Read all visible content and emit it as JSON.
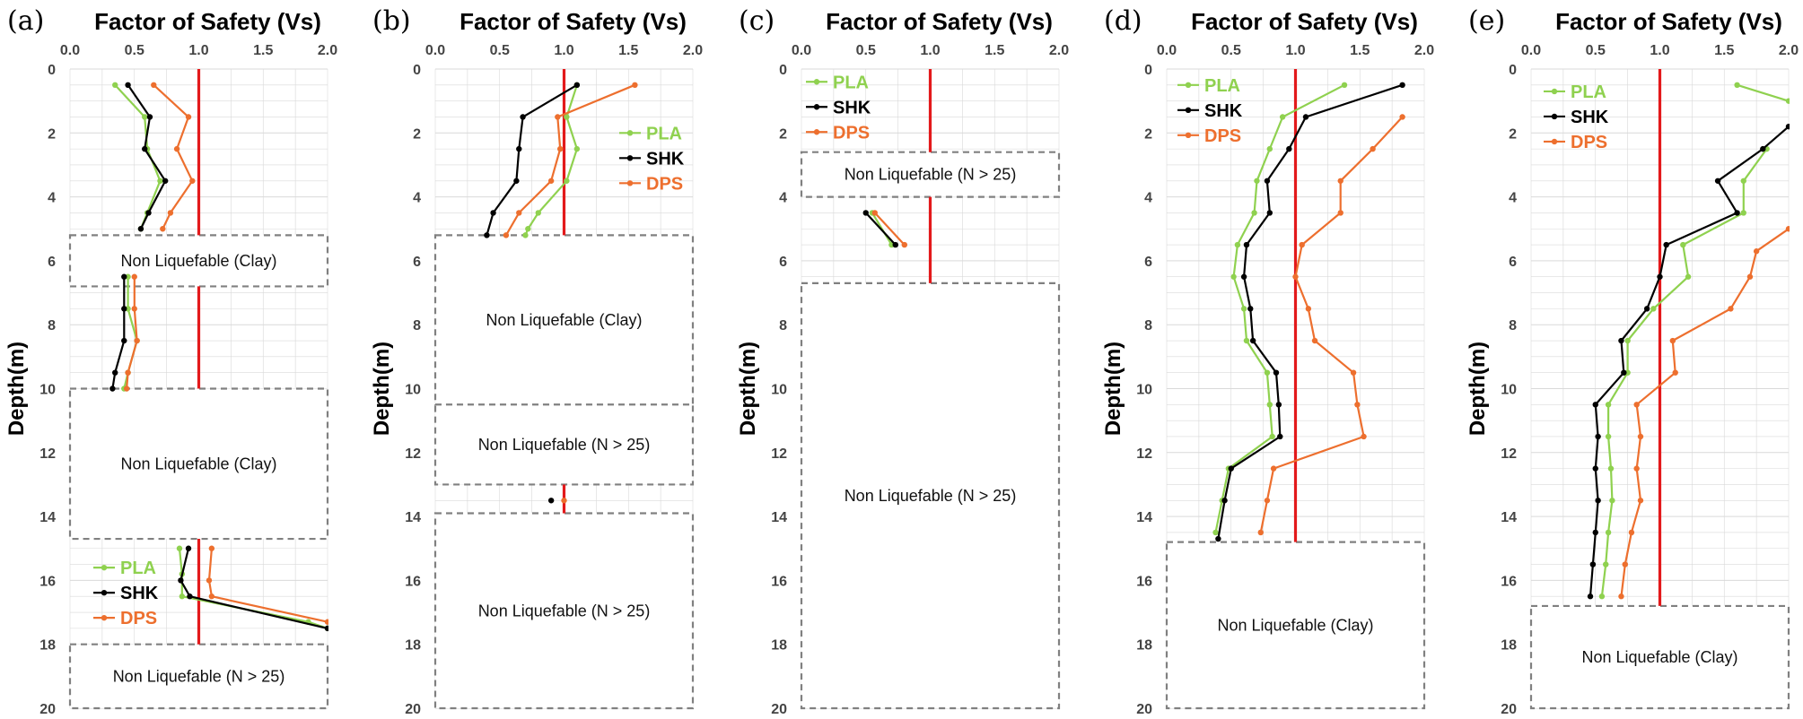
{
  "figure": {
    "colors": {
      "PLA": "#8fd14f",
      "SHK": "#000000",
      "DPS": "#ed6f2e",
      "threshold": "#e3191b",
      "grid": "#d9d9d9",
      "zone_border": "#808080"
    }
  },
  "chart_data": [
    {
      "type": "line",
      "panel_label": "(a)",
      "title": "Factor of Safety (Vs)",
      "ylabel": "Depth(m)",
      "xlim": [
        0,
        2.0
      ],
      "ylim": [
        20,
        0
      ],
      "x_ticks": [
        "0.0",
        "0.5",
        "1.0",
        "1.5",
        "2.0"
      ],
      "y_ticks": [
        "0",
        "2",
        "4",
        "6",
        "8",
        "10",
        "12",
        "14",
        "16",
        "18",
        "20"
      ],
      "threshold": 1.0,
      "legends": [
        {
          "entries": [
            "PLA",
            "SHK",
            "DPS"
          ],
          "depth": 15.6
        }
      ],
      "series": [
        {
          "name": "PLA",
          "segments": [
            [
              [
                0.35,
                0.5
              ],
              [
                0.58,
                1.5
              ],
              [
                0.6,
                2.5
              ],
              [
                0.7,
                3.5
              ],
              [
                0.6,
                4.5
              ],
              [
                0.55,
                5.0
              ]
            ],
            [
              [
                0.45,
                6.5
              ],
              [
                0.45,
                7.5
              ],
              [
                0.52,
                8.5
              ],
              [
                0.45,
                9.5
              ],
              [
                0.42,
                10.0
              ]
            ],
            [
              [
                0.85,
                15.0
              ],
              [
                0.87,
                15.8
              ],
              [
                0.87,
                16.5
              ],
              [
                1.85,
                17.3
              ],
              [
                2.0,
                17.5
              ]
            ]
          ]
        },
        {
          "name": "SHK",
          "segments": [
            [
              [
                0.45,
                0.5
              ],
              [
                0.62,
                1.5
              ],
              [
                0.58,
                2.5
              ],
              [
                0.74,
                3.5
              ],
              [
                0.61,
                4.5
              ],
              [
                0.55,
                5.0
              ]
            ],
            [
              [
                0.42,
                6.5
              ],
              [
                0.42,
                7.5
              ],
              [
                0.42,
                8.5
              ],
              [
                0.35,
                9.5
              ],
              [
                0.33,
                10.0
              ]
            ],
            [
              [
                0.92,
                15.0
              ],
              [
                0.86,
                16.0
              ],
              [
                0.93,
                16.5
              ],
              [
                2.0,
                17.5
              ]
            ]
          ]
        },
        {
          "name": "DPS",
          "segments": [
            [
              [
                0.65,
                0.5
              ],
              [
                0.92,
                1.5
              ],
              [
                0.83,
                2.5
              ],
              [
                0.95,
                3.5
              ],
              [
                0.78,
                4.5
              ],
              [
                0.72,
                5.0
              ]
            ],
            [
              [
                0.5,
                6.5
              ],
              [
                0.5,
                7.5
              ],
              [
                0.52,
                8.5
              ],
              [
                0.45,
                9.5
              ],
              [
                0.44,
                10.0
              ]
            ],
            [
              [
                1.1,
                15.0
              ],
              [
                1.08,
                16.0
              ],
              [
                1.1,
                16.5
              ],
              [
                2.0,
                17.3
              ]
            ]
          ]
        }
      ],
      "zones": [
        {
          "label": "Non Liquefable (Clay)",
          "top": 5.2,
          "bottom": 6.8
        },
        {
          "label": "Non Liquefable (Clay)",
          "top": 10.0,
          "bottom": 14.7
        },
        {
          "label": "Non Liquefable (N > 25)",
          "top": 18.0,
          "bottom": 20.0
        }
      ],
      "threshold_segments": [
        [
          0,
          5.2
        ],
        [
          6.8,
          10.0
        ],
        [
          14.7,
          18.0
        ]
      ]
    },
    {
      "type": "line",
      "panel_label": "(b)",
      "title": "Factor of Safety (Vs)",
      "ylabel": "Depth(m)",
      "xlim": [
        0,
        2.0
      ],
      "ylim": [
        20,
        0
      ],
      "x_ticks": [
        "0.0",
        "0.5",
        "1.0",
        "1.5",
        "2.0"
      ],
      "y_ticks": [
        "0",
        "2",
        "4",
        "6",
        "8",
        "10",
        "12",
        "14",
        "16",
        "18",
        "20"
      ],
      "threshold": 1.0,
      "legends": [
        {
          "entries": [
            "PLA",
            "SHK",
            "DPS"
          ],
          "depth": 2.0
        }
      ],
      "series": [
        {
          "name": "PLA",
          "segments": [
            [
              [
                1.1,
                0.5
              ],
              [
                1.02,
                1.5
              ],
              [
                1.1,
                2.5
              ],
              [
                1.02,
                3.5
              ],
              [
                0.8,
                4.5
              ],
              [
                0.72,
                5.0
              ],
              [
                0.7,
                5.2
              ]
            ]
          ]
        },
        {
          "name": "SHK",
          "segments": [
            [
              [
                1.1,
                0.5
              ],
              [
                0.68,
                1.5
              ],
              [
                0.65,
                2.5
              ],
              [
                0.63,
                3.5
              ],
              [
                0.45,
                4.5
              ],
              [
                0.4,
                5.2
              ]
            ],
            [
              [
                0.9,
                13.5
              ]
            ]
          ]
        },
        {
          "name": "DPS",
          "segments": [
            [
              [
                1.55,
                0.5
              ],
              [
                0.95,
                1.5
              ],
              [
                0.97,
                2.5
              ],
              [
                0.9,
                3.5
              ],
              [
                0.65,
                4.5
              ],
              [
                0.55,
                5.2
              ]
            ],
            [
              [
                1.0,
                13.5
              ]
            ]
          ]
        }
      ],
      "zones": [
        {
          "label": "Non Liquefable (Clay)",
          "top": 5.2,
          "bottom": 10.5
        },
        {
          "label": "Non Liquefable (N > 25)",
          "top": 10.5,
          "bottom": 13.0
        },
        {
          "label": "Non Liquefable (N > 25)",
          "top": 13.9,
          "bottom": 20.0
        }
      ],
      "threshold_segments": [
        [
          0,
          5.2
        ],
        [
          13.0,
          13.9
        ]
      ]
    },
    {
      "type": "line",
      "panel_label": "(c)",
      "title": "Factor of Safety (Vs)",
      "ylabel": "Depth(m)",
      "xlim": [
        0,
        2.0
      ],
      "ylim": [
        20,
        0
      ],
      "x_ticks": [
        "0.0",
        "0.5",
        "1.0",
        "1.5",
        "2.0"
      ],
      "y_ticks": [
        "0",
        "2",
        "4",
        "6",
        "8",
        "10",
        "12",
        "14",
        "16",
        "18",
        "20"
      ],
      "threshold": 1.0,
      "legends": [
        {
          "entries": [
            "PLA",
            "SHK",
            "DPS"
          ],
          "depth": 0.4
        }
      ],
      "series": [
        {
          "name": "PLA",
          "segments": [
            [
              [
                0.55,
                4.5
              ],
              [
                0.7,
                5.5
              ]
            ]
          ]
        },
        {
          "name": "SHK",
          "segments": [
            [
              [
                0.5,
                4.5
              ],
              [
                0.73,
                5.5
              ]
            ]
          ]
        },
        {
          "name": "DPS",
          "segments": [
            [
              [
                0.57,
                4.5
              ],
              [
                0.8,
                5.5
              ]
            ]
          ]
        }
      ],
      "zones": [
        {
          "label": "Non Liquefable (N > 25)",
          "top": 2.6,
          "bottom": 4.0
        },
        {
          "label": "Non Liquefable (N > 25)",
          "top": 6.7,
          "bottom": 20.0
        }
      ],
      "threshold_segments": [
        [
          0,
          2.6
        ],
        [
          4.0,
          6.7
        ]
      ]
    },
    {
      "type": "line",
      "panel_label": "(d)",
      "title": "Factor of Safety (Vs)",
      "ylabel": "Depth(m)",
      "xlim": [
        0,
        2.0
      ],
      "ylim": [
        20,
        0
      ],
      "x_ticks": [
        "0.0",
        "0.5",
        "1.0",
        "1.5",
        "2.0"
      ],
      "y_ticks": [
        "0",
        "2",
        "4",
        "6",
        "8",
        "10",
        "12",
        "14",
        "16",
        "18",
        "20"
      ],
      "threshold": 1.0,
      "legends": [
        {
          "entries": [
            "PLA",
            "SHK",
            "DPS"
          ],
          "depth": 0.5
        }
      ],
      "series": [
        {
          "name": "PLA",
          "segments": [
            [
              [
                1.38,
                0.5
              ],
              [
                0.9,
                1.5
              ],
              [
                0.8,
                2.5
              ],
              [
                0.7,
                3.5
              ],
              [
                0.68,
                4.5
              ],
              [
                0.55,
                5.5
              ],
              [
                0.52,
                6.5
              ],
              [
                0.6,
                7.5
              ],
              [
                0.62,
                8.5
              ],
              [
                0.78,
                9.5
              ],
              [
                0.8,
                10.5
              ],
              [
                0.82,
                11.5
              ],
              [
                0.48,
                12.5
              ],
              [
                0.43,
                13.5
              ],
              [
                0.38,
                14.5
              ]
            ]
          ]
        },
        {
          "name": "SHK",
          "segments": [
            [
              [
                1.83,
                0.5
              ],
              [
                1.08,
                1.5
              ],
              [
                0.95,
                2.5
              ],
              [
                0.78,
                3.5
              ],
              [
                0.8,
                4.5
              ],
              [
                0.62,
                5.5
              ],
              [
                0.6,
                6.5
              ],
              [
                0.65,
                7.5
              ],
              [
                0.67,
                8.5
              ],
              [
                0.85,
                9.5
              ],
              [
                0.87,
                10.5
              ],
              [
                0.88,
                11.5
              ],
              [
                0.5,
                12.5
              ],
              [
                0.45,
                13.5
              ],
              [
                0.4,
                14.7
              ]
            ]
          ]
        },
        {
          "name": "DPS",
          "segments": [
            [
              [
                1.83,
                1.5
              ],
              [
                1.6,
                2.5
              ],
              [
                1.35,
                3.5
              ],
              [
                1.35,
                4.5
              ],
              [
                1.05,
                5.5
              ],
              [
                1.0,
                6.5
              ],
              [
                1.1,
                7.5
              ],
              [
                1.15,
                8.5
              ],
              [
                1.45,
                9.5
              ],
              [
                1.48,
                10.5
              ],
              [
                1.53,
                11.5
              ],
              [
                0.83,
                12.5
              ],
              [
                0.78,
                13.5
              ],
              [
                0.73,
                14.5
              ]
            ]
          ]
        }
      ],
      "zones": [
        {
          "label": "Non Liquefable (Clay)",
          "top": 14.8,
          "bottom": 20.0
        }
      ],
      "threshold_segments": [
        [
          0,
          14.8
        ]
      ]
    },
    {
      "type": "line",
      "panel_label": "(e)",
      "title": "Factor of Safety (Vs)",
      "ylabel": "Depth(m)",
      "xlim": [
        0,
        2.0
      ],
      "ylim": [
        20,
        0
      ],
      "x_ticks": [
        "0.0",
        "0.5",
        "1.0",
        "1.5",
        "2.0"
      ],
      "y_ticks": [
        "0",
        "2",
        "4",
        "6",
        "8",
        "10",
        "12",
        "14",
        "16",
        "18",
        "20"
      ],
      "threshold": 1.0,
      "legends": [
        {
          "entries": [
            "PLA",
            "SHK",
            "DPS"
          ],
          "depth": 0.7
        }
      ],
      "series": [
        {
          "name": "PLA",
          "segments": [
            [
              [
                1.6,
                0.5
              ],
              [
                2.0,
                1.0
              ]
            ],
            [
              [
                1.83,
                2.5
              ],
              [
                1.65,
                3.5
              ],
              [
                1.65,
                4.5
              ],
              [
                1.18,
                5.5
              ],
              [
                1.22,
                6.5
              ],
              [
                0.95,
                7.5
              ],
              [
                0.75,
                8.5
              ],
              [
                0.75,
                9.5
              ],
              [
                0.6,
                10.5
              ],
              [
                0.6,
                11.5
              ],
              [
                0.62,
                12.5
              ],
              [
                0.63,
                13.5
              ],
              [
                0.6,
                14.5
              ],
              [
                0.58,
                15.5
              ],
              [
                0.55,
                16.5
              ]
            ]
          ]
        },
        {
          "name": "SHK",
          "segments": [
            [
              [
                2.0,
                1.8
              ],
              [
                1.8,
                2.5
              ],
              [
                1.45,
                3.5
              ],
              [
                1.6,
                4.5
              ],
              [
                1.05,
                5.5
              ],
              [
                1.0,
                6.5
              ],
              [
                0.9,
                7.5
              ],
              [
                0.7,
                8.5
              ],
              [
                0.72,
                9.5
              ],
              [
                0.5,
                10.5
              ],
              [
                0.52,
                11.5
              ],
              [
                0.5,
                12.5
              ],
              [
                0.52,
                13.5
              ],
              [
                0.5,
                14.5
              ],
              [
                0.48,
                15.5
              ],
              [
                0.46,
                16.5
              ]
            ]
          ]
        },
        {
          "name": "DPS",
          "segments": [
            [
              [
                2.0,
                5.0
              ],
              [
                1.75,
                5.7
              ],
              [
                1.7,
                6.5
              ],
              [
                1.55,
                7.5
              ],
              [
                1.1,
                8.5
              ],
              [
                1.12,
                9.5
              ],
              [
                0.82,
                10.5
              ],
              [
                0.85,
                11.5
              ],
              [
                0.82,
                12.5
              ],
              [
                0.85,
                13.5
              ],
              [
                0.78,
                14.5
              ],
              [
                0.73,
                15.5
              ],
              [
                0.7,
                16.5
              ]
            ]
          ]
        }
      ],
      "zones": [
        {
          "label": "Non Liquefable (Clay)",
          "top": 16.8,
          "bottom": 20.0
        }
      ],
      "threshold_segments": [
        [
          0,
          16.8
        ]
      ]
    }
  ]
}
